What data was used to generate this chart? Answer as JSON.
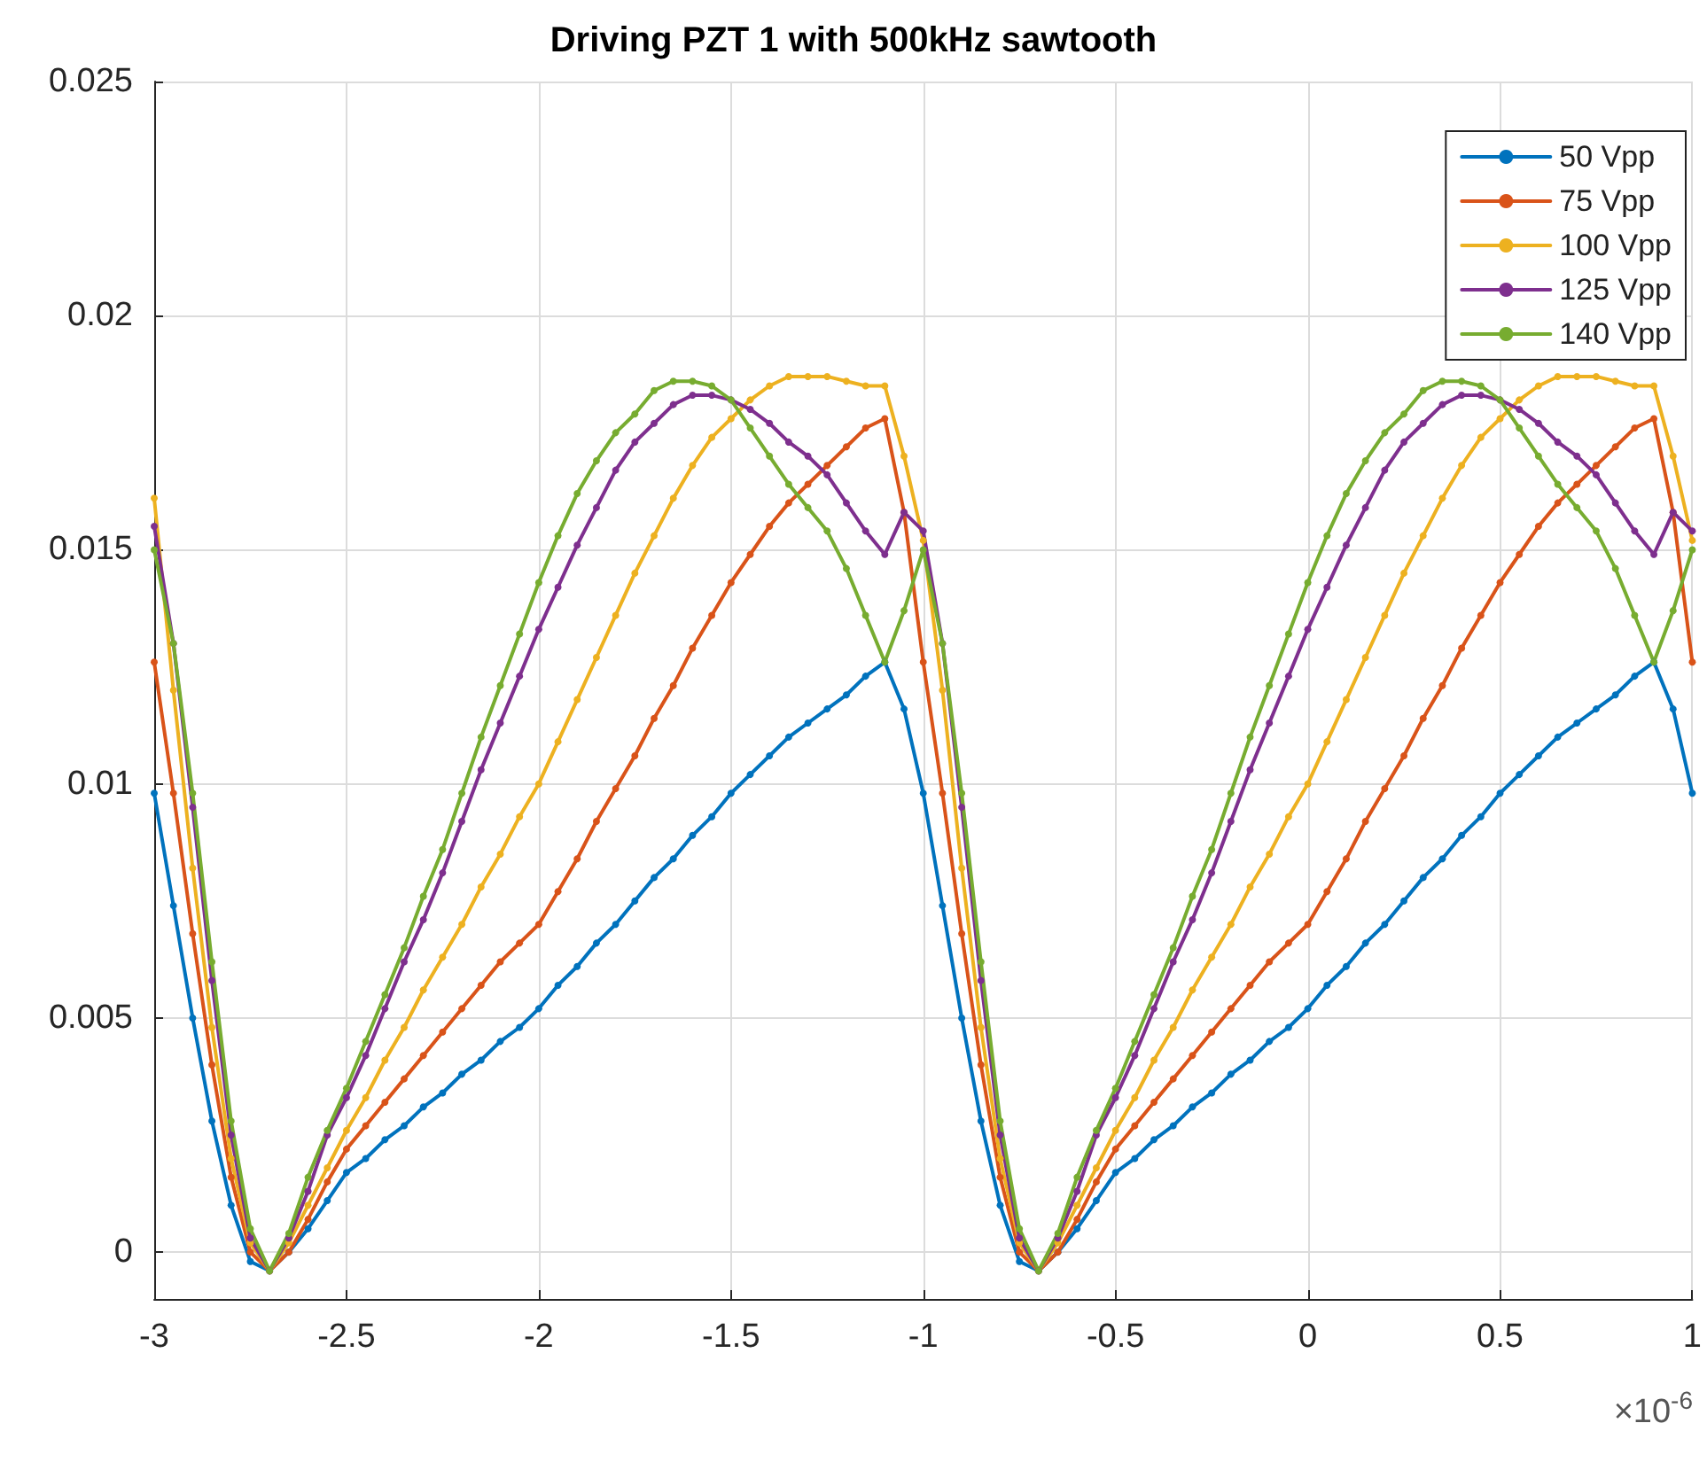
{
  "chart_data": {
    "type": "line",
    "title": "Driving PZT 1 with 500kHz sawtooth",
    "annotations": [
      "×10$^{-6}$"
    ],
    "x": [
      -3,
      -2.95,
      -2.9,
      -2.85,
      -2.8,
      -2.75,
      -2.7,
      -2.65,
      -2.6,
      -2.55,
      -2.5,
      -2.45,
      -2.4,
      -2.35,
      -2.3,
      -2.25,
      -2.2,
      -2.15,
      -2.1,
      -2.05,
      -2,
      -1.95,
      -1.9,
      -1.85,
      -1.8,
      -1.75,
      -1.7,
      -1.65,
      -1.6,
      -1.55,
      -1.5,
      -1.45,
      -1.4,
      -1.35,
      -1.3,
      -1.25,
      -1.2,
      -1.15,
      -1.1,
      -1.05,
      -1,
      -0.95,
      -0.9,
      -0.85,
      -0.8,
      -0.75,
      -0.7,
      -0.65,
      -0.6,
      -0.55,
      -0.5,
      -0.45,
      -0.4,
      -0.35,
      -0.3,
      -0.25,
      -0.2,
      -0.15,
      -0.1,
      -0.05,
      0,
      0.05,
      0.1,
      0.15,
      0.2,
      0.25,
      0.3,
      0.35,
      0.4,
      0.45,
      0.5,
      0.55,
      0.6,
      0.65,
      0.7,
      0.75,
      0.8,
      0.85,
      0.9,
      0.95,
      1
    ],
    "series": [
      {
        "name": "50 Vpp",
        "color": "#0072bd",
        "values": [
          0.0098,
          0.0074,
          0.005,
          0.0028,
          0.001,
          -0.0002,
          -0.0004,
          0.0,
          0.0005,
          0.0011,
          0.0017,
          0.002,
          0.0024,
          0.0027,
          0.0031,
          0.0034,
          0.0038,
          0.0041,
          0.0045,
          0.0048,
          0.0052,
          0.0057,
          0.0061,
          0.0066,
          0.007,
          0.0075,
          0.008,
          0.0084,
          0.0089,
          0.0093,
          0.0098,
          0.0102,
          0.0106,
          0.011,
          0.0113,
          0.0116,
          0.0119,
          0.0123,
          0.0126,
          0.0116,
          0.0098,
          0.0074,
          0.005,
          0.0028,
          0.001,
          -0.0002,
          -0.0004,
          0.0,
          0.0005,
          0.0011,
          0.0017,
          0.002,
          0.0024,
          0.0027,
          0.0031,
          0.0034,
          0.0038,
          0.0041,
          0.0045,
          0.0048,
          0.0052,
          0.0057,
          0.0061,
          0.0066,
          0.007,
          0.0075,
          0.008,
          0.0084,
          0.0089,
          0.0093,
          0.0098,
          0.0102,
          0.0106,
          0.011,
          0.0113,
          0.0116,
          0.0119,
          0.0123,
          0.0126,
          0.0116,
          0.0098
        ]
      },
      {
        "name": "75 Vpp",
        "color": "#d95319",
        "values": [
          0.0126,
          0.0098,
          0.0068,
          0.004,
          0.0016,
          0.0,
          -0.0004,
          0.0,
          0.0007,
          0.0015,
          0.0022,
          0.0027,
          0.0032,
          0.0037,
          0.0042,
          0.0047,
          0.0052,
          0.0057,
          0.0062,
          0.0066,
          0.007,
          0.0077,
          0.0084,
          0.0092,
          0.0099,
          0.0106,
          0.0114,
          0.0121,
          0.0129,
          0.0136,
          0.0143,
          0.0149,
          0.0155,
          0.016,
          0.0164,
          0.0168,
          0.0172,
          0.0176,
          0.0178,
          0.0158,
          0.0126,
          0.0098,
          0.0068,
          0.004,
          0.0016,
          0.0,
          -0.0004,
          0.0,
          0.0007,
          0.0015,
          0.0022,
          0.0027,
          0.0032,
          0.0037,
          0.0042,
          0.0047,
          0.0052,
          0.0057,
          0.0062,
          0.0066,
          0.007,
          0.0077,
          0.0084,
          0.0092,
          0.0099,
          0.0106,
          0.0114,
          0.0121,
          0.0129,
          0.0136,
          0.0143,
          0.0149,
          0.0155,
          0.016,
          0.0164,
          0.0168,
          0.0172,
          0.0176,
          0.0178,
          0.0158,
          0.0126
        ]
      },
      {
        "name": "100 Vpp",
        "color": "#edb120",
        "values": [
          0.0161,
          0.012,
          0.0082,
          0.0048,
          0.002,
          0.0002,
          -0.0004,
          0.0002,
          0.001,
          0.0018,
          0.0026,
          0.0033,
          0.0041,
          0.0048,
          0.0056,
          0.0063,
          0.007,
          0.0078,
          0.0085,
          0.0093,
          0.01,
          0.0109,
          0.0118,
          0.0127,
          0.0136,
          0.0145,
          0.0153,
          0.0161,
          0.0168,
          0.0174,
          0.0178,
          0.0182,
          0.0185,
          0.0187,
          0.0187,
          0.0187,
          0.0186,
          0.0185,
          0.0185,
          0.017,
          0.0152,
          0.012,
          0.0082,
          0.0048,
          0.002,
          0.0002,
          -0.0004,
          0.0002,
          0.001,
          0.0018,
          0.0026,
          0.0033,
          0.0041,
          0.0048,
          0.0056,
          0.0063,
          0.007,
          0.0078,
          0.0085,
          0.0093,
          0.01,
          0.0109,
          0.0118,
          0.0127,
          0.0136,
          0.0145,
          0.0153,
          0.0161,
          0.0168,
          0.0174,
          0.0178,
          0.0182,
          0.0185,
          0.0187,
          0.0187,
          0.0187,
          0.0186,
          0.0185,
          0.0185,
          0.017,
          0.0152
        ]
      },
      {
        "name": "125 Vpp",
        "color": "#7e2f8e",
        "values": [
          0.0155,
          0.013,
          0.0095,
          0.0058,
          0.0025,
          0.0003,
          -0.0004,
          0.0003,
          0.0013,
          0.0025,
          0.0033,
          0.0042,
          0.0052,
          0.0062,
          0.0071,
          0.0081,
          0.0092,
          0.0103,
          0.0113,
          0.0123,
          0.0133,
          0.0142,
          0.0151,
          0.0159,
          0.0167,
          0.0173,
          0.0177,
          0.0181,
          0.0183,
          0.0183,
          0.0182,
          0.018,
          0.0177,
          0.0173,
          0.017,
          0.0166,
          0.016,
          0.0154,
          0.0149,
          0.0158,
          0.0154,
          0.013,
          0.0095,
          0.0058,
          0.0025,
          0.0003,
          -0.0004,
          0.0003,
          0.0013,
          0.0025,
          0.0033,
          0.0042,
          0.0052,
          0.0062,
          0.0071,
          0.0081,
          0.0092,
          0.0103,
          0.0113,
          0.0123,
          0.0133,
          0.0142,
          0.0151,
          0.0159,
          0.0167,
          0.0173,
          0.0177,
          0.0181,
          0.0183,
          0.0183,
          0.0182,
          0.018,
          0.0177,
          0.0173,
          0.017,
          0.0166,
          0.016,
          0.0154,
          0.0149,
          0.0158,
          0.0154
        ]
      },
      {
        "name": "140 Vpp",
        "color": "#77ac30",
        "values": [
          0.015,
          0.013,
          0.0098,
          0.0062,
          0.0028,
          0.0005,
          -0.0004,
          0.0004,
          0.0016,
          0.0026,
          0.0035,
          0.0045,
          0.0055,
          0.0065,
          0.0076,
          0.0086,
          0.0098,
          0.011,
          0.0121,
          0.0132,
          0.0143,
          0.0153,
          0.0162,
          0.0169,
          0.0175,
          0.0179,
          0.0184,
          0.0186,
          0.0186,
          0.0185,
          0.0182,
          0.0176,
          0.017,
          0.0164,
          0.0159,
          0.0154,
          0.0146,
          0.0136,
          0.0126,
          0.0137,
          0.015,
          0.013,
          0.0098,
          0.0062,
          0.0028,
          0.0005,
          -0.0004,
          0.0004,
          0.0016,
          0.0026,
          0.0035,
          0.0045,
          0.0055,
          0.0065,
          0.0076,
          0.0086,
          0.0098,
          0.011,
          0.0121,
          0.0132,
          0.0143,
          0.0153,
          0.0162,
          0.0169,
          0.0175,
          0.0179,
          0.0184,
          0.0186,
          0.0186,
          0.0185,
          0.0182,
          0.0176,
          0.017,
          0.0164,
          0.0159,
          0.0154,
          0.0146,
          0.0136,
          0.0126,
          0.0137,
          0.015
        ]
      }
    ],
    "xlim": [
      -3,
      1
    ],
    "xticks": [
      -3,
      -2.5,
      -2,
      -1.5,
      -1,
      -0.5,
      0,
      0.5,
      1
    ],
    "ylim": [
      -0.001,
      0.025
    ],
    "yticks": [
      0,
      0.005,
      0.01,
      0.015,
      0.02,
      0.025
    ],
    "grid": true,
    "legend": "top right",
    "marker": "circle",
    "line_style": "solid"
  }
}
